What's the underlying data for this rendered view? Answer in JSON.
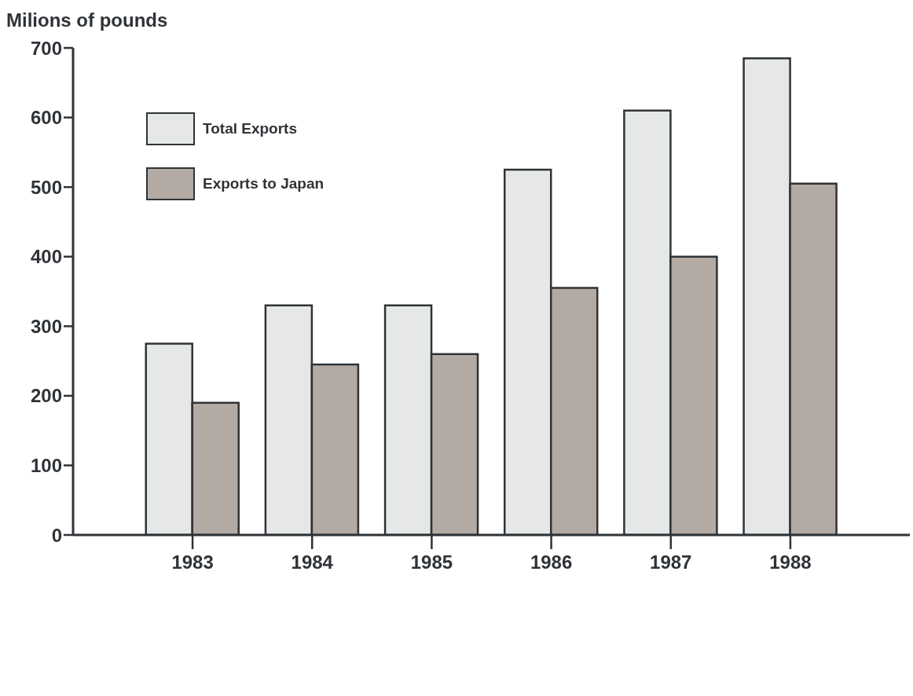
{
  "chart_data": {
    "type": "bar",
    "ylabel": "Milions of pounds",
    "categories": [
      "1983",
      "1984",
      "1985",
      "1986",
      "1987",
      "1988"
    ],
    "series": [
      {
        "name": "Total Exports",
        "color": "#e6e8e8",
        "values": [
          275,
          330,
          330,
          525,
          610,
          685
        ]
      },
      {
        "name": "Exports to Japan",
        "color": "#b3aaa3",
        "values": [
          190,
          245,
          260,
          355,
          400,
          505
        ]
      }
    ],
    "ylim": [
      0,
      700
    ],
    "yticks": [
      0,
      100,
      200,
      300,
      400,
      500,
      600,
      700
    ],
    "grid": false,
    "legend": "top left"
  }
}
